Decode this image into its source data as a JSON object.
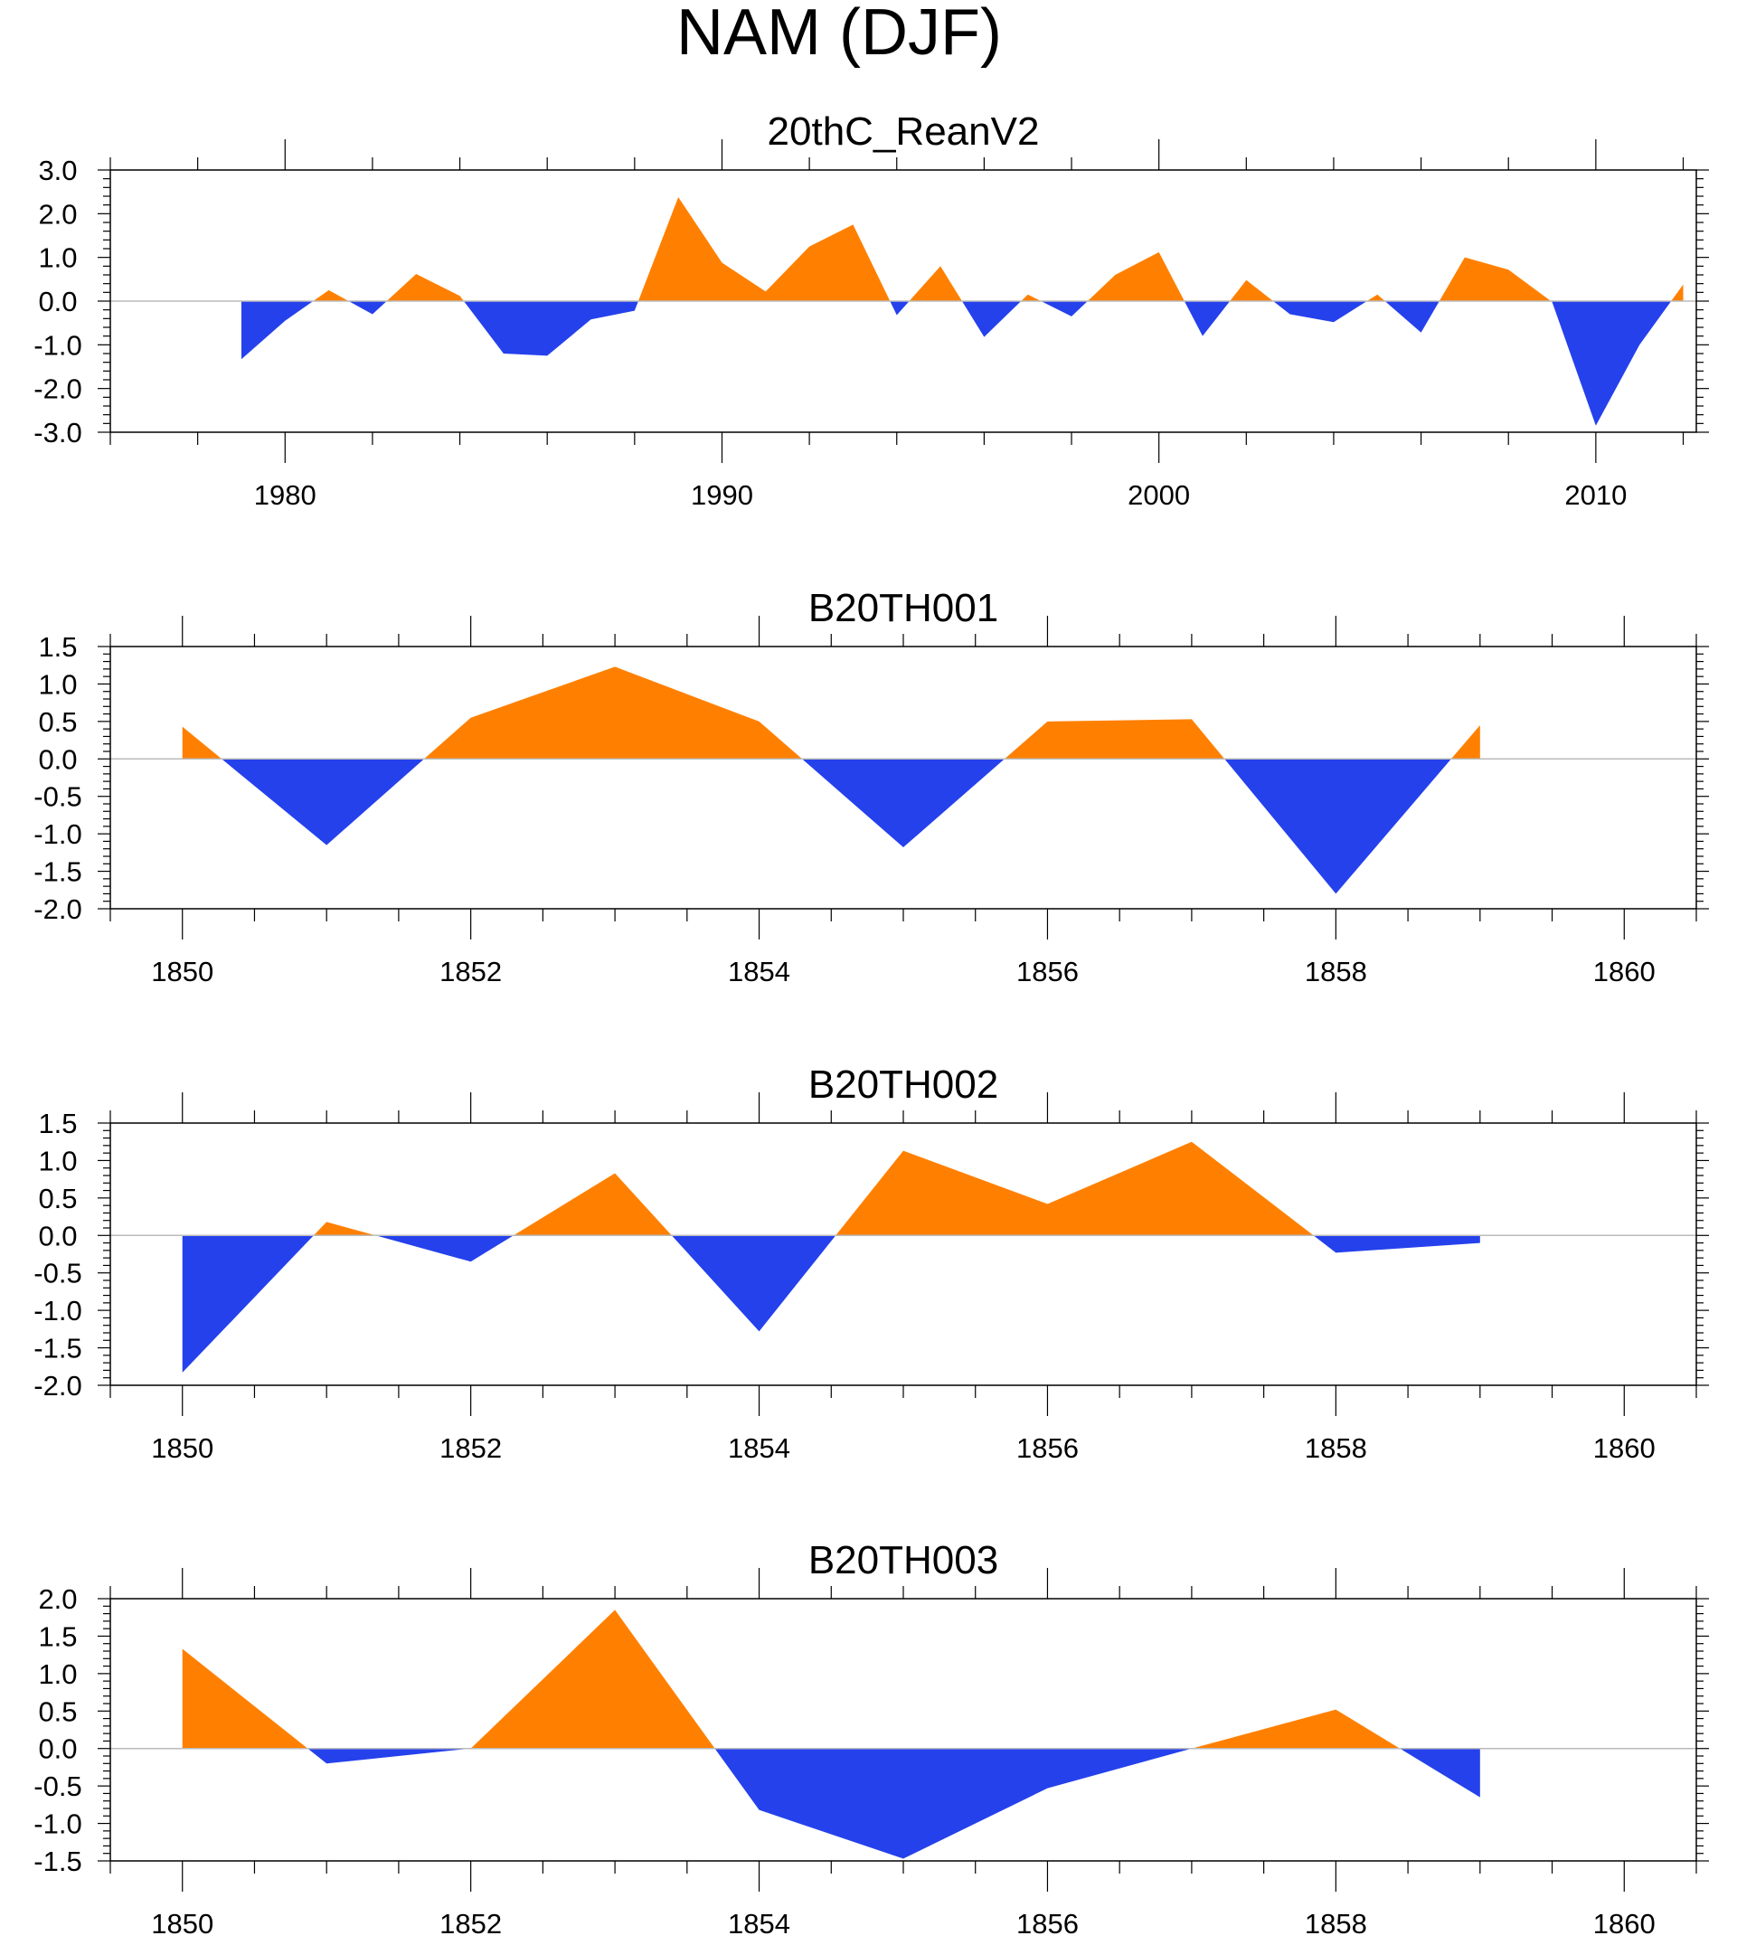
{
  "main_title": "NAM (DJF)",
  "colors": {
    "positive": "#ff8000",
    "negative": "#2541ec",
    "zero_line": "#bbbbbb",
    "frame": "#000000"
  },
  "chart_data": [
    {
      "type": "area",
      "title": "20thC_ReanV2",
      "xlim": [
        1976,
        2012.3
      ],
      "ylim": [
        -3.0,
        3.0
      ],
      "yticks": [
        3.0,
        2.0,
        1.0,
        0.0,
        -1.0,
        -2.0,
        -3.0
      ],
      "ytick_labels": [
        "3.0",
        "2.0",
        "1.0",
        "0.0",
        "-1.0",
        "-2.0",
        "-3.0"
      ],
      "y_minor_step": 0.2,
      "xticks_major": [
        1980,
        1990,
        2000,
        2010
      ],
      "xtick_labels": [
        "1980",
        "1990",
        "2000",
        "2010"
      ],
      "x_minor_step": 2,
      "x": [
        1979,
        1980,
        1981,
        1982,
        1983,
        1984,
        1985,
        1986,
        1987,
        1988,
        1989,
        1990,
        1991,
        1992,
        1993,
        1994,
        1995,
        1996,
        1997,
        1998,
        1999,
        2000,
        2001,
        2002,
        2003,
        2004,
        2005,
        2006,
        2007,
        2008,
        2009,
        2010,
        2011,
        2012
      ],
      "values": [
        -1.33,
        -0.45,
        0.25,
        -0.3,
        0.62,
        0.12,
        -1.2,
        -1.25,
        -0.42,
        -0.22,
        2.38,
        0.88,
        0.22,
        1.25,
        1.75,
        -0.32,
        0.8,
        -0.82,
        0.15,
        -0.35,
        0.6,
        1.12,
        -0.8,
        0.48,
        -0.3,
        -0.48,
        0.15,
        -0.72,
        1.0,
        0.72,
        -0.02,
        -2.85,
        -1.0,
        0.38
      ]
    },
    {
      "type": "area",
      "title": "B20TH001",
      "xlim": [
        1849.5,
        1860.5
      ],
      "ylim": [
        -2.0,
        1.5
      ],
      "yticks": [
        1.5,
        1.0,
        0.5,
        0.0,
        -0.5,
        -1.0,
        -1.5,
        -2.0
      ],
      "ytick_labels": [
        "1.5",
        "1.0",
        "0.5",
        "0.0",
        "-0.5",
        "-1.0",
        "-1.5",
        "-2.0"
      ],
      "y_minor_step": 0.1,
      "xticks_major": [
        1850,
        1852,
        1854,
        1856,
        1858,
        1860
      ],
      "xtick_labels": [
        "1850",
        "1852",
        "1854",
        "1856",
        "1858",
        "1860"
      ],
      "x_minor_step": 0.5,
      "x": [
        1850,
        1851,
        1852,
        1853,
        1854,
        1855,
        1856,
        1857,
        1858,
        1859
      ],
      "values": [
        0.43,
        -1.15,
        0.55,
        1.23,
        0.5,
        -1.18,
        0.5,
        0.53,
        -1.8,
        0.45
      ]
    },
    {
      "type": "area",
      "title": "B20TH002",
      "xlim": [
        1849.5,
        1860.5
      ],
      "ylim": [
        -2.0,
        1.5
      ],
      "yticks": [
        1.5,
        1.0,
        0.5,
        0.0,
        -0.5,
        -1.0,
        -1.5,
        -2.0
      ],
      "ytick_labels": [
        "1.5",
        "1.0",
        "0.5",
        "0.0",
        "-0.5",
        "-1.0",
        "-1.5",
        "-2.0"
      ],
      "y_minor_step": 0.1,
      "xticks_major": [
        1850,
        1852,
        1854,
        1856,
        1858,
        1860
      ],
      "xtick_labels": [
        "1850",
        "1852",
        "1854",
        "1856",
        "1858",
        "1860"
      ],
      "x_minor_step": 0.5,
      "x": [
        1850,
        1851,
        1852,
        1853,
        1854,
        1855,
        1856,
        1857,
        1858,
        1859
      ],
      "values": [
        -1.83,
        0.18,
        -0.35,
        0.83,
        -1.28,
        1.13,
        0.42,
        1.25,
        -0.23,
        -0.1
      ]
    },
    {
      "type": "area",
      "title": "B20TH003",
      "xlim": [
        1849.5,
        1860.5
      ],
      "ylim": [
        -1.5,
        2.0
      ],
      "yticks": [
        2.0,
        1.5,
        1.0,
        0.5,
        0.0,
        -0.5,
        -1.0,
        -1.5
      ],
      "ytick_labels": [
        "2.0",
        "1.5",
        "1.0",
        "0.5",
        "0.0",
        "-0.5",
        "-1.0",
        "-1.5"
      ],
      "y_minor_step": 0.1,
      "xticks_major": [
        1850,
        1852,
        1854,
        1856,
        1858,
        1860
      ],
      "xtick_labels": [
        "1850",
        "1852",
        "1854",
        "1856",
        "1858",
        "1860"
      ],
      "x_minor_step": 0.5,
      "x": [
        1850,
        1851,
        1852,
        1853,
        1854,
        1855,
        1856,
        1857,
        1858,
        1859
      ],
      "values": [
        1.33,
        -0.2,
        0.0,
        1.85,
        -0.82,
        -1.47,
        -0.53,
        0.0,
        0.52,
        -0.65
      ]
    }
  ]
}
